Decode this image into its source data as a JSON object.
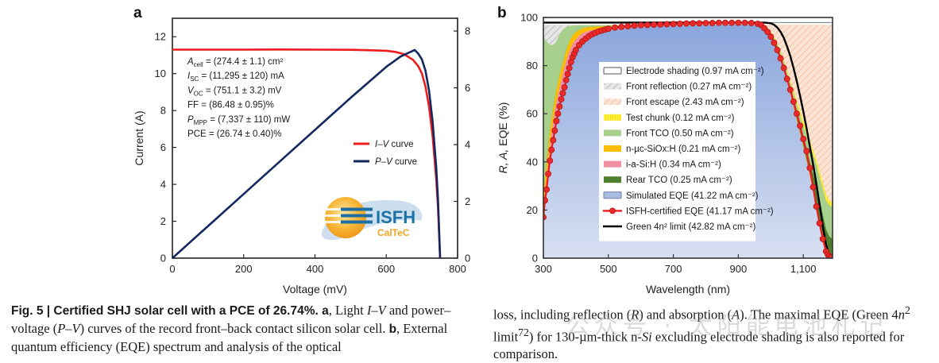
{
  "figure": {
    "panel_a_letter": "a",
    "panel_b_letter": "b"
  },
  "chart_data": [
    {
      "type": "line",
      "panel": "a",
      "xlabel": "Voltage (mV)",
      "ylabel": "Current (A)",
      "ylabel_right": "",
      "xlim": [
        0,
        800
      ],
      "ylim": [
        0,
        13
      ],
      "ylim_right": [
        0,
        8.45
      ],
      "xticks": [
        0,
        200,
        400,
        600,
        800
      ],
      "yticks": [
        0,
        2,
        4,
        6,
        8,
        10,
        12
      ],
      "yticks_right": [
        0,
        2,
        4,
        6,
        8
      ],
      "legend_position": "center-right",
      "series": [
        {
          "name": "I–V curve",
          "name_italic": "I–V",
          "name_rest": " curve",
          "axis": "left",
          "color": "#ee1c1c",
          "x": [
            0,
            100,
            200,
            300,
            400,
            500,
            550,
            600,
            625,
            650,
            675,
            690,
            700,
            710,
            720,
            730,
            740,
            745,
            751
          ],
          "y": [
            11.3,
            11.3,
            11.3,
            11.31,
            11.3,
            11.29,
            11.27,
            11.24,
            11.18,
            11.05,
            10.75,
            10.4,
            10.0,
            9.3,
            8.2,
            6.6,
            4.3,
            2.8,
            0
          ]
        },
        {
          "name": "P–V curve",
          "name_italic": "P–V",
          "name_rest": " curve",
          "axis": "right",
          "color": "#14275e",
          "x": [
            0,
            100,
            200,
            300,
            400,
            500,
            600,
            640,
            665,
            680,
            690,
            700,
            710,
            720,
            730,
            740,
            745,
            751
          ],
          "y": [
            0,
            1.13,
            2.26,
            3.39,
            4.52,
            5.65,
            6.74,
            7.1,
            7.25,
            7.33,
            7.2,
            7.0,
            6.6,
            5.9,
            4.8,
            3.2,
            2.1,
            0
          ]
        }
      ],
      "annotations": [
        {
          "main": "A",
          "sub": "cell",
          "rest": " = (274.4 ± 1.1) cm²"
        },
        {
          "main": "I",
          "sub": "SC",
          "rest": " = (11,295 ± 120) mA"
        },
        {
          "main": "V",
          "sub": "OC",
          "rest": " = (751.1 ± 3.2) mV"
        },
        {
          "main": "",
          "sub": "",
          "rest": "FF = (86.48 ± 0.95)%"
        },
        {
          "main": "P",
          "sub": "MPP",
          "rest": " = (7,337 ± 110) mW"
        },
        {
          "main": "",
          "sub": "",
          "rest": "PCE = (26.74 ± 0.40)%"
        }
      ],
      "logo": {
        "line1": "ISFH",
        "line2": "CalTeC"
      }
    },
    {
      "type": "area",
      "panel": "b",
      "xlabel": "Wavelength (nm)",
      "ylabel": "R, A, EQE (%)",
      "xlim": [
        300,
        1190
      ],
      "ylim": [
        0,
        100
      ],
      "xticks": [
        300,
        500,
        700,
        900,
        1100
      ],
      "xtick_labels": [
        "300",
        "500",
        "700",
        "900",
        "1,100"
      ],
      "yticks": [
        0,
        20,
        40,
        60,
        80,
        100
      ],
      "legend_position": "center",
      "x": [
        300,
        310,
        320,
        330,
        340,
        350,
        360,
        370,
        380,
        390,
        400,
        420,
        440,
        460,
        500,
        550,
        600,
        700,
        800,
        900,
        950,
        980,
        1000,
        1020,
        1040,
        1060,
        1080,
        1100,
        1120,
        1140,
        1160,
        1170,
        1180,
        1190
      ],
      "layers": [
        {
          "name": "Simulated EQE",
          "value": "41.22",
          "color": "#98b3e0",
          "top": [
            17,
            30,
            42,
            52,
            60,
            66,
            72,
            77,
            81,
            84,
            87,
            90,
            92,
            93,
            94.5,
            95.5,
            96,
            96.5,
            96.8,
            97,
            96.8,
            96,
            93,
            87,
            78,
            68,
            57,
            46,
            34,
            21,
            9,
            4,
            1.5,
            0.5
          ]
        },
        {
          "name": "i-a-Si:H",
          "value": "0.34",
          "color": "#f08fa3",
          "top": [
            20,
            34,
            47,
            57,
            65,
            71,
            77,
            82,
            86,
            89,
            91,
            93.5,
            94.5,
            95,
            95.5,
            96,
            96.2,
            96.6,
            96.9,
            97,
            96.8,
            96,
            93,
            87,
            78.5,
            68.5,
            57.5,
            46.5,
            34.5,
            21.5,
            9.5,
            4.5,
            2,
            0.8
          ]
        },
        {
          "name": "n-µc-SiOx:H",
          "value": "0.21",
          "color": "#ffbd00",
          "top": [
            27,
            40,
            53,
            62,
            70,
            76,
            81,
            86,
            90,
            92.5,
            94,
            95.5,
            96,
            96.2,
            96.4,
            96.5,
            96.5,
            96.7,
            96.9,
            97,
            96.8,
            96.1,
            93.2,
            87.3,
            79,
            69,
            58,
            47,
            35,
            22,
            10,
            5,
            2.2,
            1
          ]
        },
        {
          "name": "Rear TCO",
          "value": "0.25",
          "color": "#4f7f2e",
          "top": [
            27,
            40,
            53,
            62,
            70,
            76,
            81,
            86,
            90,
            92.5,
            94,
            95.5,
            96,
            96.2,
            96.4,
            96.5,
            96.5,
            96.7,
            96.9,
            97,
            96.8,
            96.2,
            93.5,
            88,
            80,
            70.5,
            60,
            50,
            40,
            30,
            18,
            12,
            9,
            8
          ]
        },
        {
          "name": "Front TCO",
          "value": "0.50",
          "color": "#a8d08d",
          "top": [
            92,
            90,
            88.5,
            88.5,
            90,
            93,
            95,
            96,
            96.4,
            96.6,
            96.7,
            96.8,
            96.8,
            96.8,
            96.8,
            96.8,
            96.8,
            96.8,
            96.9,
            97,
            96.9,
            96.4,
            94,
            89,
            82,
            73,
            64,
            55,
            47,
            39,
            29,
            24,
            22,
            21
          ]
        },
        {
          "name": "Test chunk",
          "value": "0.12",
          "color": "#ffee3a",
          "top": [
            92,
            90,
            88.5,
            88.5,
            90,
            93,
            95,
            96,
            96.4,
            96.6,
            96.7,
            96.8,
            96.8,
            96.8,
            96.8,
            96.8,
            96.8,
            96.8,
            96.9,
            97,
            96.9,
            96.5,
            94.3,
            89.5,
            82.7,
            74,
            65.5,
            57,
            49,
            41,
            31.5,
            26.5,
            24,
            23
          ]
        },
        {
          "name": "Front reflection",
          "value": "0.27",
          "color": "#d9d9d9",
          "top": [
            96.9,
            96.9,
            96.9,
            96.9,
            96.9,
            96.9,
            96.9,
            96.9,
            96.9,
            96.9,
            96.9,
            96.9,
            96.9,
            96.9,
            96.9,
            96.9,
            96.9,
            96.9,
            97,
            97,
            96.9,
            96.5,
            94.3,
            89.5,
            82.7,
            74,
            65.5,
            57,
            49,
            41,
            31.5,
            26.5,
            24,
            23
          ]
        },
        {
          "name": "Front escape",
          "value": "2.43",
          "color": "#f7c9ad",
          "top": [
            96.9,
            96.9,
            96.9,
            96.9,
            96.9,
            96.9,
            96.9,
            96.9,
            96.9,
            96.9,
            96.9,
            96.9,
            96.9,
            96.9,
            96.9,
            96.9,
            96.9,
            96.9,
            97,
            97,
            97,
            97,
            97,
            97,
            97,
            97,
            97,
            97,
            97,
            97,
            97,
            97,
            97,
            97
          ]
        },
        {
          "name": "Electrode shading",
          "value": "0.97",
          "color": "#ffffff",
          "top": [
            100,
            100,
            100,
            100,
            100,
            100,
            100,
            100,
            100,
            100,
            100,
            100,
            100,
            100,
            100,
            100,
            100,
            100,
            100,
            100,
            100,
            100,
            100,
            100,
            100,
            100,
            100,
            100,
            100,
            100,
            100,
            100,
            100,
            100
          ]
        }
      ],
      "lines": [
        {
          "name": "ISFH-certified EQE",
          "value": "41.17",
          "color": "#ee1c1c",
          "markers": true,
          "x": [
            300,
            305,
            310,
            315,
            320,
            325,
            330,
            335,
            340,
            345,
            350,
            355,
            360,
            365,
            370,
            375,
            380,
            385,
            390,
            395,
            400,
            410,
            420,
            430,
            440,
            450,
            460,
            470,
            480,
            490,
            500,
            520,
            540,
            560,
            580,
            600,
            620,
            640,
            660,
            680,
            700,
            720,
            740,
            760,
            780,
            800,
            820,
            840,
            860,
            880,
            900,
            920,
            940,
            960,
            970,
            980,
            990,
            1000,
            1010,
            1020,
            1030,
            1040,
            1050,
            1060,
            1070,
            1080,
            1090,
            1100,
            1110,
            1120,
            1130,
            1140,
            1150,
            1160,
            1170,
            1175,
            1180,
            1185
          ],
          "y": [
            17,
            24,
            28.5,
            35,
            40.5,
            45,
            49,
            53,
            57,
            60,
            63,
            66,
            68.5,
            71,
            74,
            76.5,
            79,
            81.5,
            83.5,
            85,
            86.5,
            88.5,
            90,
            91.2,
            92.2,
            93,
            93.6,
            94.2,
            94.6,
            95,
            95.3,
            95.8,
            96.1,
            96.4,
            96.6,
            96.8,
            96.9,
            97.0,
            97.1,
            97.2,
            97.3,
            97.4,
            97.5,
            97.6,
            97.6,
            97.7,
            97.7,
            97.8,
            97.8,
            97.8,
            97.8,
            97.8,
            97.7,
            97.4,
            96.9,
            95.5,
            94,
            92,
            89.5,
            86.5,
            83,
            79,
            74.5,
            70,
            65,
            60,
            55,
            49.5,
            44.5,
            37.5,
            29.5,
            21.5,
            14.5,
            8,
            2.8,
            1.5,
            0.8,
            0.3
          ]
        },
        {
          "name": "Green 4n² limit",
          "value": "42.82",
          "color": "#000000",
          "markers": false,
          "x": [
            300,
            400,
            500,
            600,
            700,
            800,
            900,
            980,
            1000,
            1010,
            1020,
            1030,
            1040,
            1050,
            1060,
            1070,
            1080,
            1090,
            1100,
            1110,
            1120,
            1130,
            1140,
            1150,
            1160,
            1170,
            1180,
            1190
          ],
          "y": [
            97.9,
            97.9,
            97.9,
            97.9,
            97.9,
            97.9,
            97.9,
            97.9,
            97.6,
            97,
            95.8,
            94,
            91.5,
            88,
            84,
            79,
            73.5,
            67.5,
            61,
            54,
            46.5,
            39,
            31,
            22.5,
            13.5,
            5.5,
            1.5,
            0.5
          ]
        }
      ],
      "legend": [
        {
          "label": "Electrode shading (0.97 mA cm⁻²)",
          "swatch": "white-box"
        },
        {
          "label": "Front reflection (0.27 mA cm⁻²)",
          "swatch": "grey-hatch"
        },
        {
          "label": "Front escape (2.43 mA cm⁻²)",
          "swatch": "peach-hatch"
        },
        {
          "label": "Test chunk (0.12 mA cm⁻²)",
          "swatch": "yellow"
        },
        {
          "label": "Front TCO (0.50 mA cm⁻²)",
          "swatch": "light-green"
        },
        {
          "label": "n-µc-SiOx:H (0.21 mA cm⁻²)",
          "swatch": "orange"
        },
        {
          "label": "i-a-Si:H (0.34 mA cm⁻²)",
          "swatch": "pink"
        },
        {
          "label": "Rear TCO (0.25 mA cm⁻²)",
          "swatch": "dark-green"
        },
        {
          "label": "Simulated EQE (41.22 mA cm⁻²)",
          "swatch": "blue-box"
        },
        {
          "label": "ISFH-certified EQE (41.17 mA cm⁻²)",
          "swatch": "red-marker-line"
        },
        {
          "label": "Green 4n² limit (42.82 mA cm⁻²)",
          "swatch": "black-line"
        }
      ]
    }
  ],
  "caption": {
    "fig_label": "Fig. 5 | Certified SHJ solar cell with a PCE of 26.74%.",
    "left_text_1": " a",
    "left_text_2": ", Light ",
    "left_iv": "I–V",
    "left_text_3": " and power–voltage (",
    "left_pv": "P–V",
    "left_text_4": ") curves of the record front–back contact silicon solar cell. ",
    "left_b": "b",
    "left_text_5": ", External quantum efficiency (EQE) spectrum and analysis of the optical",
    "right_text_1": "loss, including reflection (",
    "right_R": "R",
    "right_text_2": ") and absorption (",
    "right_A": "A",
    "right_text_3": "). The maximal EQE (Green 4",
    "right_n": "n",
    "right_sup2": "2",
    "right_text_4": " limit",
    "right_ref": "72",
    "right_text_5": ") for 130-µm-thick n-",
    "right_Si": "Si",
    "right_text_6": " excluding electrode shading is also reported for comparison."
  },
  "watermark": "公众号 · 太阳能电池札记"
}
